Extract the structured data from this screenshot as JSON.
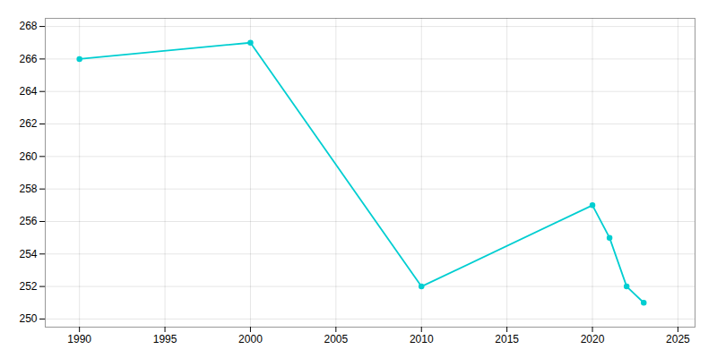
{
  "chart_data": {
    "type": "line",
    "x": [
      1990,
      2000,
      2010,
      2020,
      2021,
      2022,
      2023
    ],
    "values": [
      266,
      267,
      252,
      257,
      255,
      252,
      251
    ],
    "color": "#00CED1",
    "marker": "circle",
    "xlim": [
      1988,
      2026
    ],
    "ylim": [
      249.5,
      268.5
    ],
    "xticks": [
      1990,
      1995,
      2000,
      2005,
      2010,
      2015,
      2020,
      2025
    ],
    "yticks": [
      250,
      252,
      254,
      256,
      258,
      260,
      262,
      264,
      266,
      268
    ],
    "grid": true
  }
}
